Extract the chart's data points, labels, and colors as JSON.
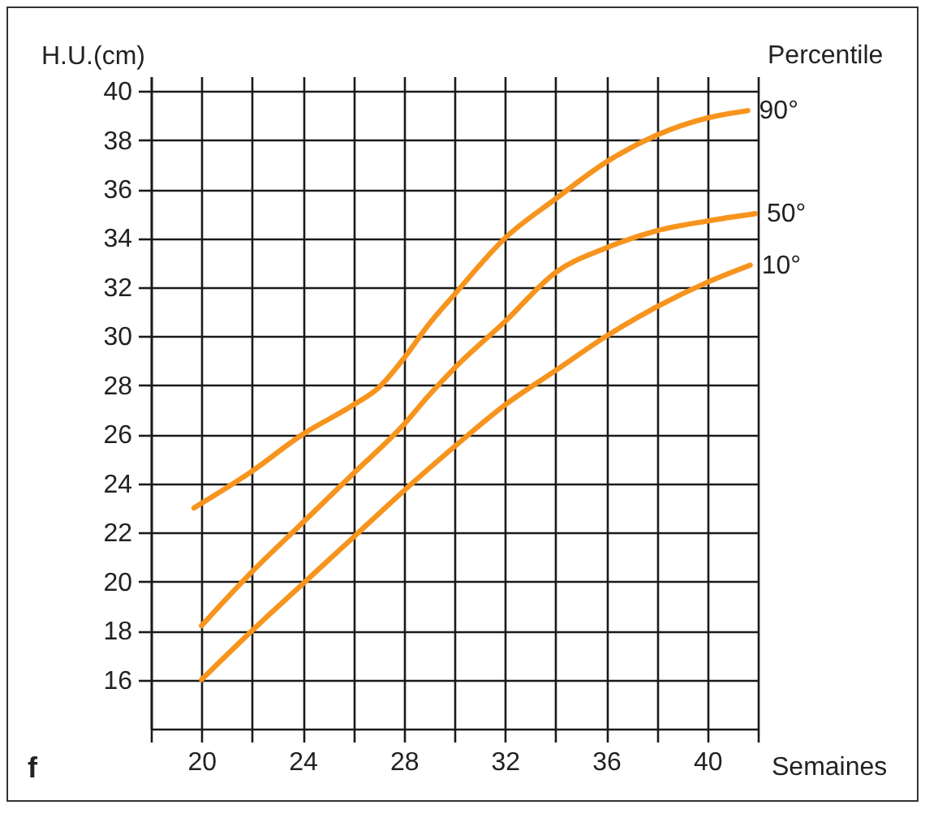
{
  "chart_data": {
    "type": "line",
    "xlabel": "Semaines",
    "ylabel": "H.U.(cm)",
    "legend_title": "Percentile",
    "annotations": [
      "f"
    ],
    "xlim": [
      18,
      42
    ],
    "ylim": [
      14,
      40.6
    ],
    "xticks": [
      {
        "value": 18,
        "label": null
      },
      20,
      {
        "value": 22,
        "label": null
      },
      24,
      {
        "value": 26,
        "label": null
      },
      28,
      {
        "value": 30,
        "label": null
      },
      32,
      {
        "value": 34,
        "label": null
      },
      36,
      {
        "value": 38,
        "label": null
      },
      40,
      {
        "value": 42,
        "label": null
      }
    ],
    "yticks": [
      16,
      18,
      20,
      22,
      24,
      26,
      28,
      30,
      32,
      34,
      36,
      38,
      40
    ],
    "grid": true,
    "legend": false,
    "marker": "none",
    "line_style": "solid",
    "series": [
      {
        "name": "90°",
        "color": "#f7941d",
        "x": [
          19.7,
          22,
          24,
          26,
          27,
          28,
          29,
          30,
          32,
          34,
          36,
          38,
          40,
          41.6
        ],
        "values": [
          23,
          24.5,
          26,
          27.2,
          27.9,
          29.1,
          30.5,
          31.7,
          34,
          35.6,
          37.1,
          38.2,
          38.9,
          39.2
        ]
      },
      {
        "name": "50°",
        "color": "#f7941d",
        "x": [
          20,
          22,
          24,
          26,
          28,
          29,
          30,
          32,
          34,
          36,
          38,
          40,
          41.9
        ],
        "values": [
          18.2,
          20.4,
          22.4,
          24.4,
          26.4,
          27.6,
          28.7,
          30.6,
          32.6,
          33.6,
          34.3,
          34.7,
          35
        ]
      },
      {
        "name": "10°",
        "color": "#f7941d",
        "x": [
          20,
          22,
          24,
          26,
          28,
          30,
          32,
          34,
          36,
          38,
          40,
          41.7
        ],
        "values": [
          16,
          18,
          19.9,
          21.8,
          23.7,
          25.5,
          27.2,
          28.6,
          30,
          31.2,
          32.2,
          32.9
        ]
      }
    ]
  }
}
